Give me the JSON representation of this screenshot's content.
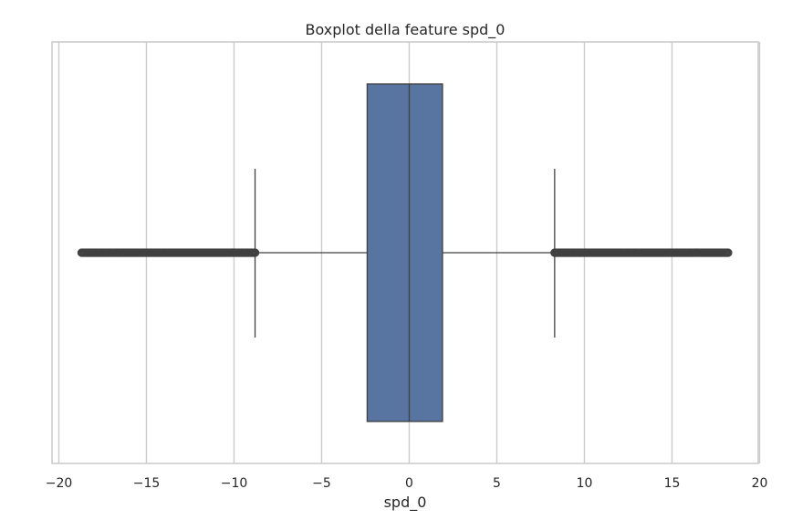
{
  "chart_data": {
    "type": "boxplot",
    "title": "Boxplot della feature spd_0",
    "xlabel": "spd_0",
    "ylabel": "",
    "xlim": [
      -20.1,
      20
    ],
    "xticks": [
      -20,
      -15,
      -10,
      -5,
      0,
      5,
      10,
      15,
      20
    ],
    "xtick_labels": [
      "−20",
      "−15",
      "−10",
      "−5",
      "0",
      "5",
      "10",
      "15",
      "20"
    ],
    "grid": "vertical",
    "orientation": "horizontal",
    "box": {
      "q1": -2.4,
      "median": 0.0,
      "q3": 1.9,
      "whisker_low": -8.8,
      "whisker_high": 8.3,
      "outliers_low_range": [
        -18.7,
        -8.8
      ],
      "outliers_high_range": [
        8.3,
        18.2
      ]
    },
    "colors": {
      "box_fill": "#5874a0",
      "lines": "#404040",
      "grid": "#cccccc",
      "spine": "#cccccc",
      "text": "#262626"
    }
  }
}
